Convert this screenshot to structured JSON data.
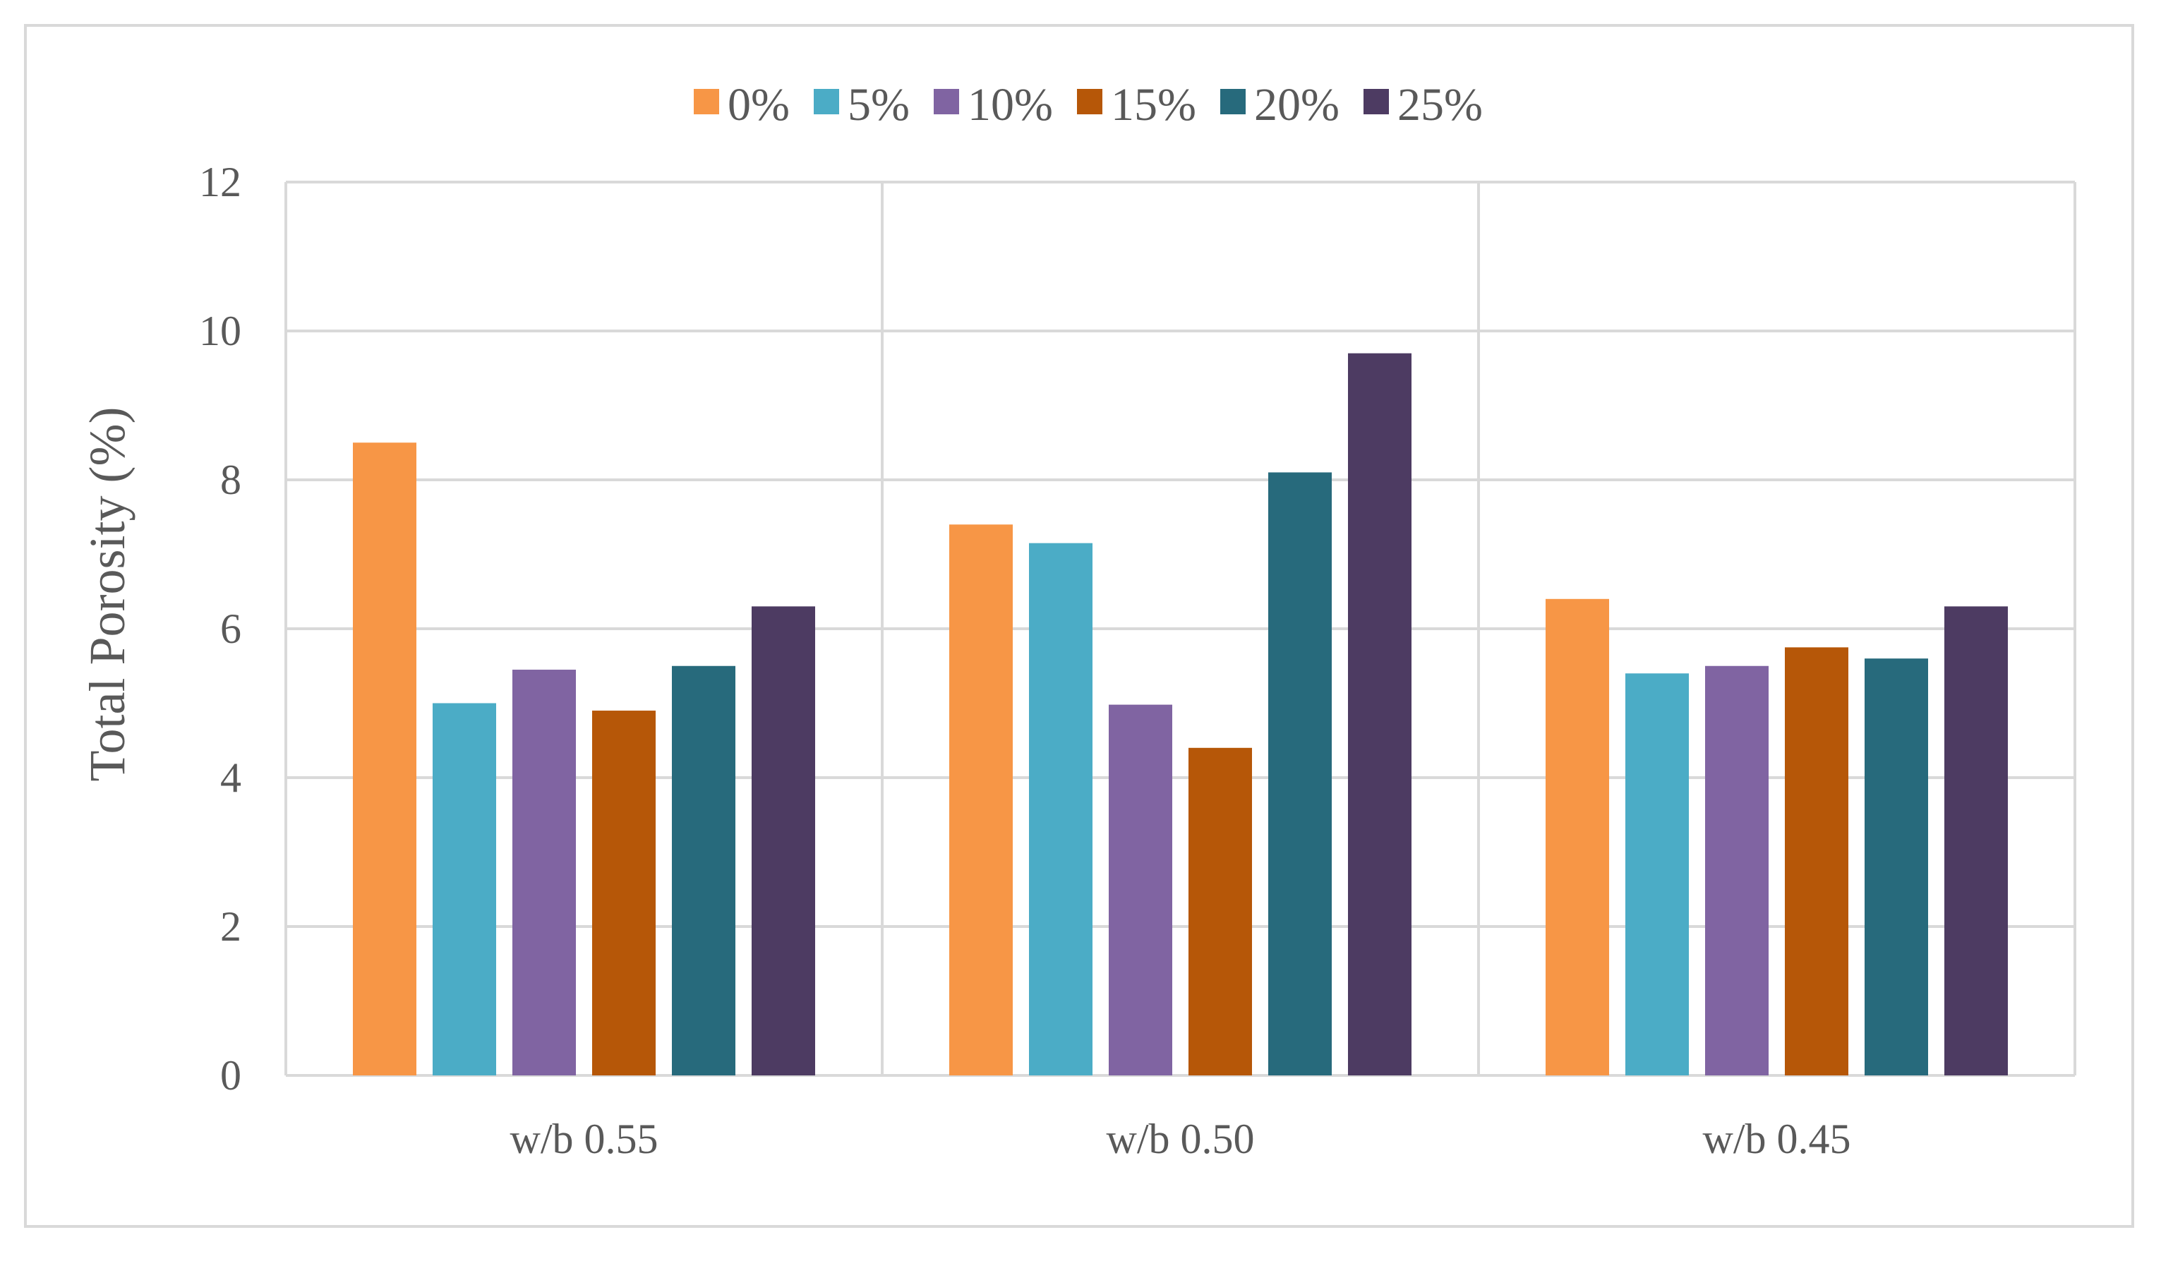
{
  "chart_data": {
    "type": "bar",
    "title": "",
    "xlabel": "",
    "ylabel": "Total Porosity (%)",
    "ylim": [
      0,
      12
    ],
    "yticks": [
      0,
      2,
      4,
      6,
      8,
      10,
      12
    ],
    "ytick_labels": [
      "0",
      "2",
      "4",
      "6",
      "8",
      "10",
      "12"
    ],
    "grid": true,
    "legend_position": "top",
    "categories": [
      "w/b 0.55",
      "w/b 0.50",
      "w/b 0.45"
    ],
    "series": [
      {
        "name": "0%",
        "color": "#F79646",
        "values": [
          8.5,
          7.4,
          6.4
        ]
      },
      {
        "name": "5%",
        "color": "#4BACC6",
        "values": [
          5.0,
          7.15,
          5.4
        ]
      },
      {
        "name": "10%",
        "color": "#8064A2",
        "values": [
          5.45,
          4.98,
          5.5
        ]
      },
      {
        "name": "15%",
        "color": "#B65708",
        "values": [
          4.9,
          4.4,
          5.75
        ]
      },
      {
        "name": "20%",
        "color": "#276A7C",
        "values": [
          5.5,
          8.1,
          5.6
        ]
      },
      {
        "name": "25%",
        "color": "#4D3B62",
        "values": [
          6.3,
          9.7,
          6.3
        ]
      }
    ]
  }
}
